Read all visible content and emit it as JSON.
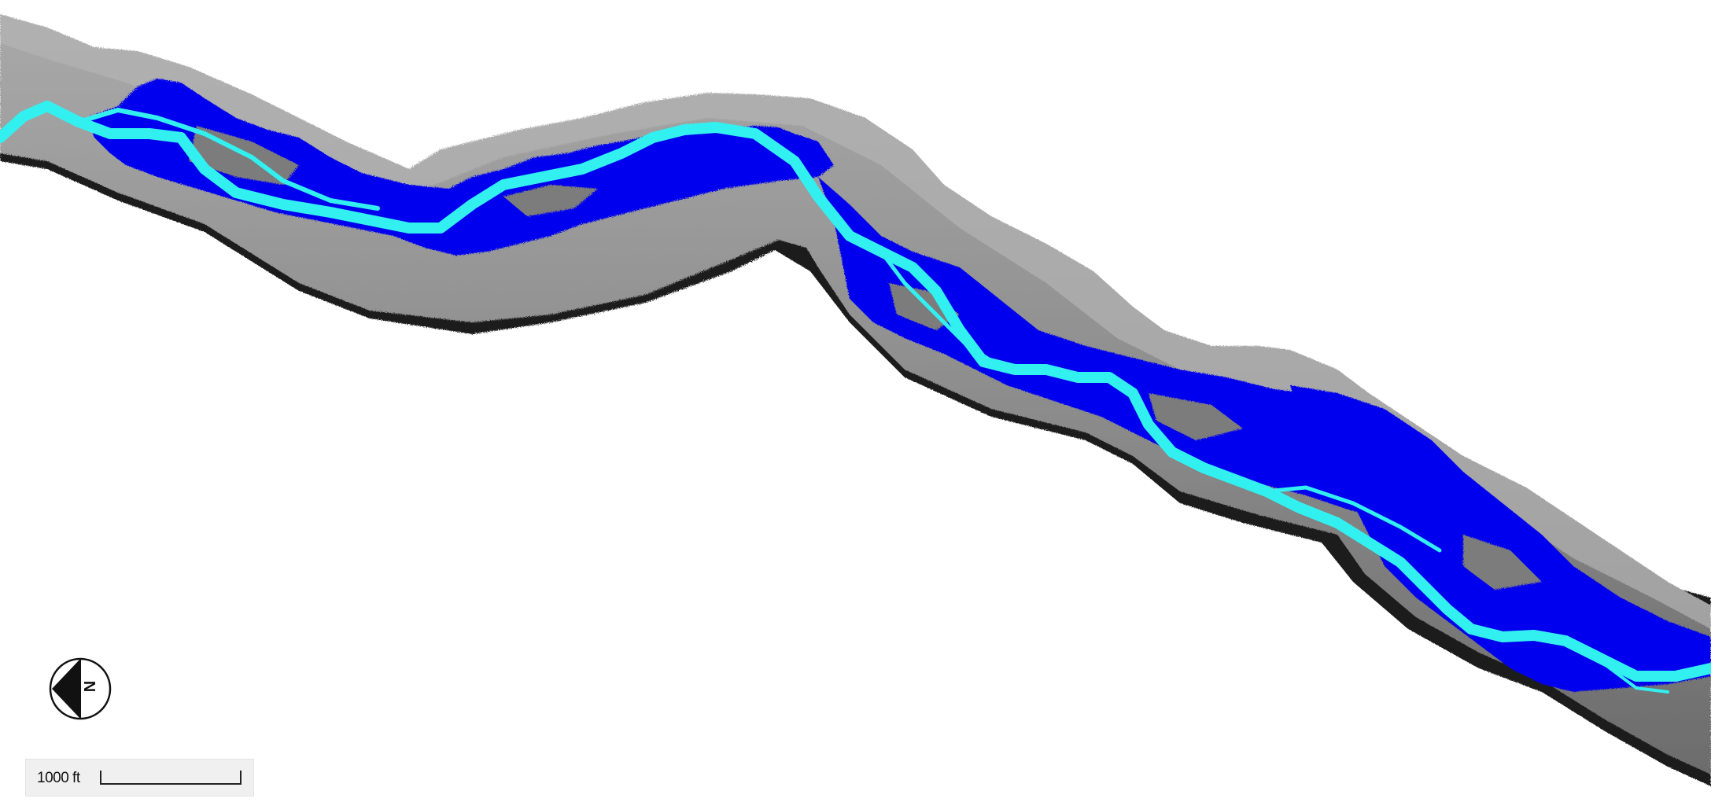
{
  "map": {
    "type": "flood-inundation",
    "colors": {
      "background": "#ffffff",
      "terrain_light": "#9a9a9a",
      "terrain_mid": "#7a7a7a",
      "terrain_shadow": "#1e1e1e",
      "flood_extent": "#0000ee",
      "channel": "#33f0f0"
    }
  },
  "north_arrow": {
    "letter": "N",
    "icon": "north-arrow-icon"
  },
  "scale_bar": {
    "label": "1000 ft"
  }
}
